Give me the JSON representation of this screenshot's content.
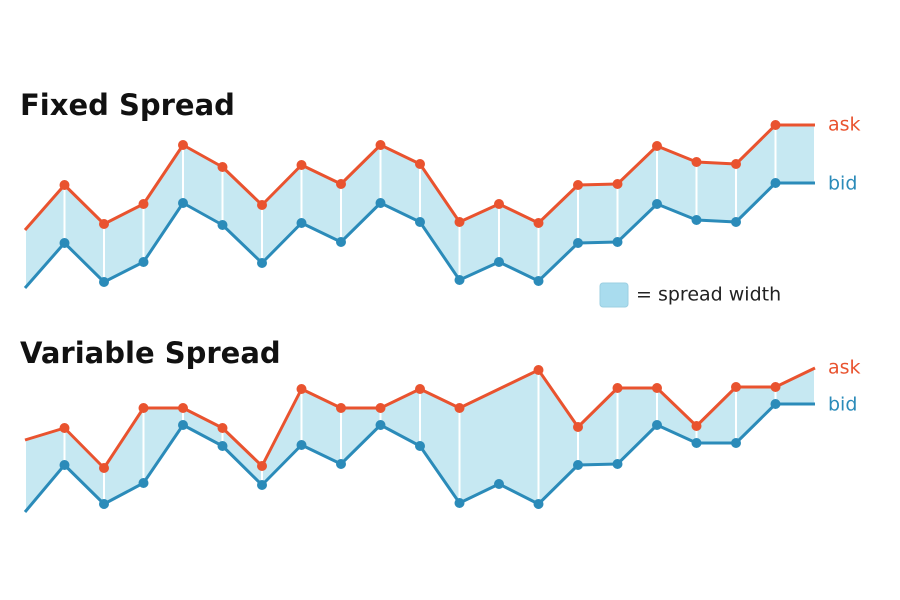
{
  "chart_data": [
    {
      "type": "line",
      "title": "Fixed Spread",
      "fill_between": true,
      "fill_color": "#c6e8f2",
      "legend_label": "= spread width",
      "x": [
        0,
        1,
        2,
        3,
        4,
        5,
        6,
        7,
        8,
        9,
        10,
        11,
        12,
        13,
        14,
        15,
        16,
        17,
        18,
        19,
        20
      ],
      "series": [
        {
          "name": "ask",
          "color": "#e9532f",
          "values": [
            9.0,
            13.5,
            9.6,
            11.6,
            17.5,
            15.3,
            11.5,
            15.5,
            13.6,
            17.5,
            15.6,
            9.8,
            11.6,
            9.7,
            13.5,
            13.6,
            17.4,
            15.8,
            15.6,
            19.5,
            19.5
          ]
        },
        {
          "name": "bid",
          "color": "#2b8bb9",
          "values": [
            3.2,
            7.7,
            3.8,
            5.8,
            11.7,
            9.5,
            5.7,
            9.7,
            7.8,
            11.7,
            9.8,
            4.0,
            5.8,
            3.9,
            7.7,
            7.8,
            11.6,
            10.0,
            9.8,
            13.7,
            13.7
          ]
        }
      ]
    },
    {
      "type": "line",
      "title": "Variable Spread",
      "fill_between": true,
      "fill_color": "#c6e8f2",
      "x": [
        0,
        1,
        2,
        3,
        4,
        5,
        6,
        7,
        8,
        9,
        10,
        11,
        12,
        13,
        14,
        15,
        16,
        17,
        18,
        19,
        20
      ],
      "series": [
        {
          "name": "ask",
          "color": "#e9532f",
          "x": [
            0,
            1,
            2,
            3,
            4,
            5,
            6,
            7,
            8,
            9,
            10,
            11,
            13,
            14,
            15,
            16,
            17,
            18,
            19,
            20
          ],
          "values": [
            10.0,
            11.2,
            7.2,
            13.2,
            13.2,
            11.2,
            7.4,
            15.1,
            13.2,
            13.2,
            15.1,
            13.2,
            17.0,
            11.3,
            15.2,
            15.2,
            11.4,
            15.3,
            15.3,
            17.2
          ]
        },
        {
          "name": "bid",
          "color": "#2b8bb9",
          "values": [
            2.8,
            7.5,
            3.6,
            5.7,
            11.5,
            9.4,
            5.5,
            9.5,
            7.6,
            11.5,
            9.4,
            3.7,
            5.6,
            3.6,
            7.5,
            7.6,
            11.5,
            9.7,
            9.7,
            13.6,
            13.6
          ]
        }
      ]
    }
  ]
}
